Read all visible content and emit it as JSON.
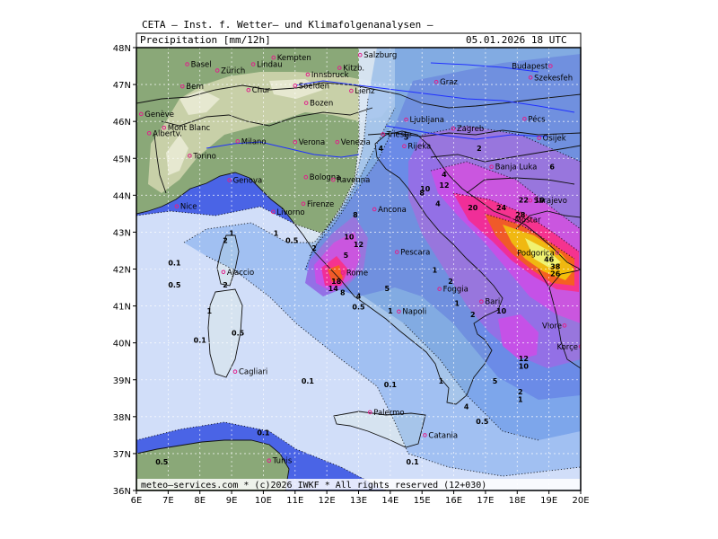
{
  "header": {
    "institution": "CETA — Inst. f. Wetter— und Klimafolgenanalysen —",
    "product": "Precipitation [mm/12h]",
    "datetime": "05.01.2026 18 UTC",
    "footer": "meteo—services.com * (c)2026 IWKF * All rights reserved (12+030)"
  },
  "map": {
    "lon_range": [
      6,
      20
    ],
    "lat_range": [
      36,
      48
    ],
    "lon_ticks": [
      "6E",
      "7E",
      "8E",
      "9E",
      "10E",
      "11E",
      "12E",
      "13E",
      "14E",
      "15E",
      "16E",
      "17E",
      "18E",
      "19E",
      "20E"
    ],
    "lat_ticks": [
      "48N",
      "47N",
      "46N",
      "45N",
      "44N",
      "43N",
      "42N",
      "41N",
      "40N",
      "39N",
      "38N",
      "37N",
      "36N"
    ],
    "colors": {
      "sea": "#4a64e6",
      "land": "#8aa878",
      "alps": "#c8d0a8",
      "p01": "#dde9fb",
      "p05": "#a9c8f4",
      "p1": "#82acec",
      "p2": "#6e8fe8",
      "p5": "#9a72e6",
      "p10": "#d050e8",
      "p20": "#ff2a92",
      "p30": "#ff5a1a",
      "p40": "#ffc000",
      "p50": "#ffff66"
    },
    "cities": [
      {
        "name": "Basel",
        "lon": 7.6,
        "lat": 47.55
      },
      {
        "name": "Zürich",
        "lon": 8.55,
        "lat": 47.38
      },
      {
        "name": "Bern",
        "lon": 7.45,
        "lat": 46.95
      },
      {
        "name": "Chur",
        "lon": 9.53,
        "lat": 46.85
      },
      {
        "name": "Lindau",
        "lon": 9.68,
        "lat": 47.55
      },
      {
        "name": "Kempten",
        "lon": 10.32,
        "lat": 47.73
      },
      {
        "name": "Kitzb.",
        "lon": 12.4,
        "lat": 47.45
      },
      {
        "name": "Salzburg",
        "lon": 13.05,
        "lat": 47.8
      },
      {
        "name": "Innsbruck",
        "lon": 11.4,
        "lat": 47.27
      },
      {
        "name": "Soelden",
        "lon": 11.0,
        "lat": 46.97
      },
      {
        "name": "Lienz",
        "lon": 12.77,
        "lat": 46.83
      },
      {
        "name": "Bozen",
        "lon": 11.35,
        "lat": 46.5
      },
      {
        "name": "Graz",
        "lon": 15.45,
        "lat": 47.07
      },
      {
        "name": "Budapest",
        "lon": 19.05,
        "lat": 47.5
      },
      {
        "name": "Szekesfeh",
        "lon": 18.42,
        "lat": 47.19
      },
      {
        "name": "Genève",
        "lon": 6.15,
        "lat": 46.2
      },
      {
        "name": "Albertv.",
        "lon": 6.4,
        "lat": 45.68
      },
      {
        "name": "Mont Blanc",
        "lon": 6.87,
        "lat": 45.83
      },
      {
        "name": "Milano",
        "lon": 9.19,
        "lat": 45.46
      },
      {
        "name": "Venezia",
        "lon": 12.33,
        "lat": 45.44
      },
      {
        "name": "Verona",
        "lon": 11.0,
        "lat": 45.44
      },
      {
        "name": "Trieste",
        "lon": 13.77,
        "lat": 45.65
      },
      {
        "name": "Ljubljana",
        "lon": 14.5,
        "lat": 46.05
      },
      {
        "name": "Zagreb",
        "lon": 15.98,
        "lat": 45.81
      },
      {
        "name": "Pécs",
        "lon": 18.23,
        "lat": 46.07
      },
      {
        "name": "Osijek",
        "lon": 18.69,
        "lat": 45.55
      },
      {
        "name": "Rijeka",
        "lon": 14.44,
        "lat": 45.33
      },
      {
        "name": "Torino",
        "lon": 7.68,
        "lat": 45.07
      },
      {
        "name": "Genova",
        "lon": 8.93,
        "lat": 44.41
      },
      {
        "name": "Bologna",
        "lon": 11.34,
        "lat": 44.49
      },
      {
        "name": "Ravenna",
        "lon": 12.2,
        "lat": 44.42
      },
      {
        "name": "Banja Luka",
        "lon": 17.19,
        "lat": 44.77
      },
      {
        "name": "Nice",
        "lon": 7.27,
        "lat": 43.7
      },
      {
        "name": "Firenze",
        "lon": 11.26,
        "lat": 43.77
      },
      {
        "name": "Livorno",
        "lon": 10.31,
        "lat": 43.55
      },
      {
        "name": "Ancona",
        "lon": 13.5,
        "lat": 43.62
      },
      {
        "name": "Sarajevo",
        "lon": 18.41,
        "lat": 43.86
      },
      {
        "name": "Mostar",
        "lon": 17.81,
        "lat": 43.34
      },
      {
        "name": "Podgorica",
        "lon": 19.26,
        "lat": 42.44
      },
      {
        "name": "Pescara",
        "lon": 14.21,
        "lat": 42.46
      },
      {
        "name": "Rome",
        "lon": 12.5,
        "lat": 41.9
      },
      {
        "name": "Ajaccio",
        "lon": 8.74,
        "lat": 41.92
      },
      {
        "name": "Foggia",
        "lon": 15.55,
        "lat": 41.46
      },
      {
        "name": "Bari",
        "lon": 16.87,
        "lat": 41.12
      },
      {
        "name": "Napoli",
        "lon": 14.27,
        "lat": 40.85
      },
      {
        "name": "Vlore",
        "lon": 19.49,
        "lat": 40.47
      },
      {
        "name": "Korçe",
        "lon": 20.0,
        "lat": 39.9
      },
      {
        "name": "Cagliari",
        "lon": 9.11,
        "lat": 39.22
      },
      {
        "name": "Palermo",
        "lon": 13.36,
        "lat": 38.12
      },
      {
        "name": "Catania",
        "lon": 15.09,
        "lat": 37.5
      },
      {
        "name": "Tunis",
        "lon": 10.18,
        "lat": 36.81
      }
    ],
    "labels": [
      {
        "v": "0.5",
        "lon": 10.9,
        "lat": 42.7
      },
      {
        "v": "1",
        "lon": 10.4,
        "lat": 42.9
      },
      {
        "v": "2",
        "lon": 11.6,
        "lat": 42.5
      },
      {
        "v": "0.1",
        "lon": 7.2,
        "lat": 42.1
      },
      {
        "v": "0.5",
        "lon": 7.2,
        "lat": 41.5
      },
      {
        "v": "1",
        "lon": 9.0,
        "lat": 42.9
      },
      {
        "v": "2",
        "lon": 8.8,
        "lat": 42.7
      },
      {
        "v": "2",
        "lon": 8.8,
        "lat": 41.5
      },
      {
        "v": "1",
        "lon": 8.3,
        "lat": 40.8
      },
      {
        "v": "0.1",
        "lon": 8.0,
        "lat": 40.0
      },
      {
        "v": "0.5",
        "lon": 9.2,
        "lat": 40.2
      },
      {
        "v": "0.1",
        "lon": 11.4,
        "lat": 38.9
      },
      {
        "v": "8",
        "lon": 12.9,
        "lat": 43.4
      },
      {
        "v": "10",
        "lon": 12.7,
        "lat": 42.8
      },
      {
        "v": "12",
        "lon": 13.0,
        "lat": 42.6
      },
      {
        "v": "5",
        "lon": 12.6,
        "lat": 42.3
      },
      {
        "v": "18",
        "lon": 12.3,
        "lat": 41.6
      },
      {
        "v": "14",
        "lon": 12.2,
        "lat": 41.4
      },
      {
        "v": "8",
        "lon": 12.5,
        "lat": 41.3
      },
      {
        "v": "4",
        "lon": 13.0,
        "lat": 41.2
      },
      {
        "v": "5",
        "lon": 13.9,
        "lat": 41.4
      },
      {
        "v": "0.5",
        "lon": 13.0,
        "lat": 40.9
      },
      {
        "v": "1",
        "lon": 14.0,
        "lat": 40.8
      },
      {
        "v": "1",
        "lon": 15.4,
        "lat": 41.9
      },
      {
        "v": "2",
        "lon": 15.9,
        "lat": 41.6
      },
      {
        "v": "1",
        "lon": 16.1,
        "lat": 41.0
      },
      {
        "v": "2",
        "lon": 16.6,
        "lat": 40.7
      },
      {
        "v": "5",
        "lon": 14.5,
        "lat": 45.5
      },
      {
        "v": "4",
        "lon": 13.7,
        "lat": 45.2
      },
      {
        "v": "2",
        "lon": 16.8,
        "lat": 45.2
      },
      {
        "v": "4",
        "lon": 15.7,
        "lat": 44.5
      },
      {
        "v": "8",
        "lon": 15.0,
        "lat": 44.0
      },
      {
        "v": "10",
        "lon": 15.1,
        "lat": 44.1
      },
      {
        "v": "12",
        "lon": 15.7,
        "lat": 44.2
      },
      {
        "v": "4",
        "lon": 15.5,
        "lat": 43.7
      },
      {
        "v": "10",
        "lon": 18.7,
        "lat": 43.8
      },
      {
        "v": "20",
        "lon": 16.6,
        "lat": 43.6
      },
      {
        "v": "24",
        "lon": 17.5,
        "lat": 43.6
      },
      {
        "v": "22",
        "lon": 18.2,
        "lat": 43.8
      },
      {
        "v": "28",
        "lon": 18.1,
        "lat": 43.4
      },
      {
        "v": "46",
        "lon": 19.0,
        "lat": 42.2
      },
      {
        "v": "38",
        "lon": 19.2,
        "lat": 42.0
      },
      {
        "v": "26",
        "lon": 19.2,
        "lat": 41.8
      },
      {
        "v": "6",
        "lon": 19.1,
        "lat": 44.7
      },
      {
        "v": "10",
        "lon": 17.5,
        "lat": 40.8
      },
      {
        "v": "12",
        "lon": 18.2,
        "lat": 39.5
      },
      {
        "v": "10",
        "lon": 18.2,
        "lat": 39.3
      },
      {
        "v": "5",
        "lon": 17.3,
        "lat": 38.9
      },
      {
        "v": "2",
        "lon": 18.1,
        "lat": 38.6
      },
      {
        "v": "1",
        "lon": 18.1,
        "lat": 38.4
      },
      {
        "v": "4",
        "lon": 16.4,
        "lat": 38.2
      },
      {
        "v": "0.5",
        "lon": 16.9,
        "lat": 37.8
      },
      {
        "v": "1",
        "lon": 15.6,
        "lat": 38.9
      },
      {
        "v": "0.1",
        "lon": 14.0,
        "lat": 38.8
      },
      {
        "v": "0.1",
        "lon": 10.0,
        "lat": 37.5
      },
      {
        "v": "0.5",
        "lon": 6.8,
        "lat": 36.7
      },
      {
        "v": "0.1",
        "lon": 14.7,
        "lat": 36.7
      }
    ]
  }
}
